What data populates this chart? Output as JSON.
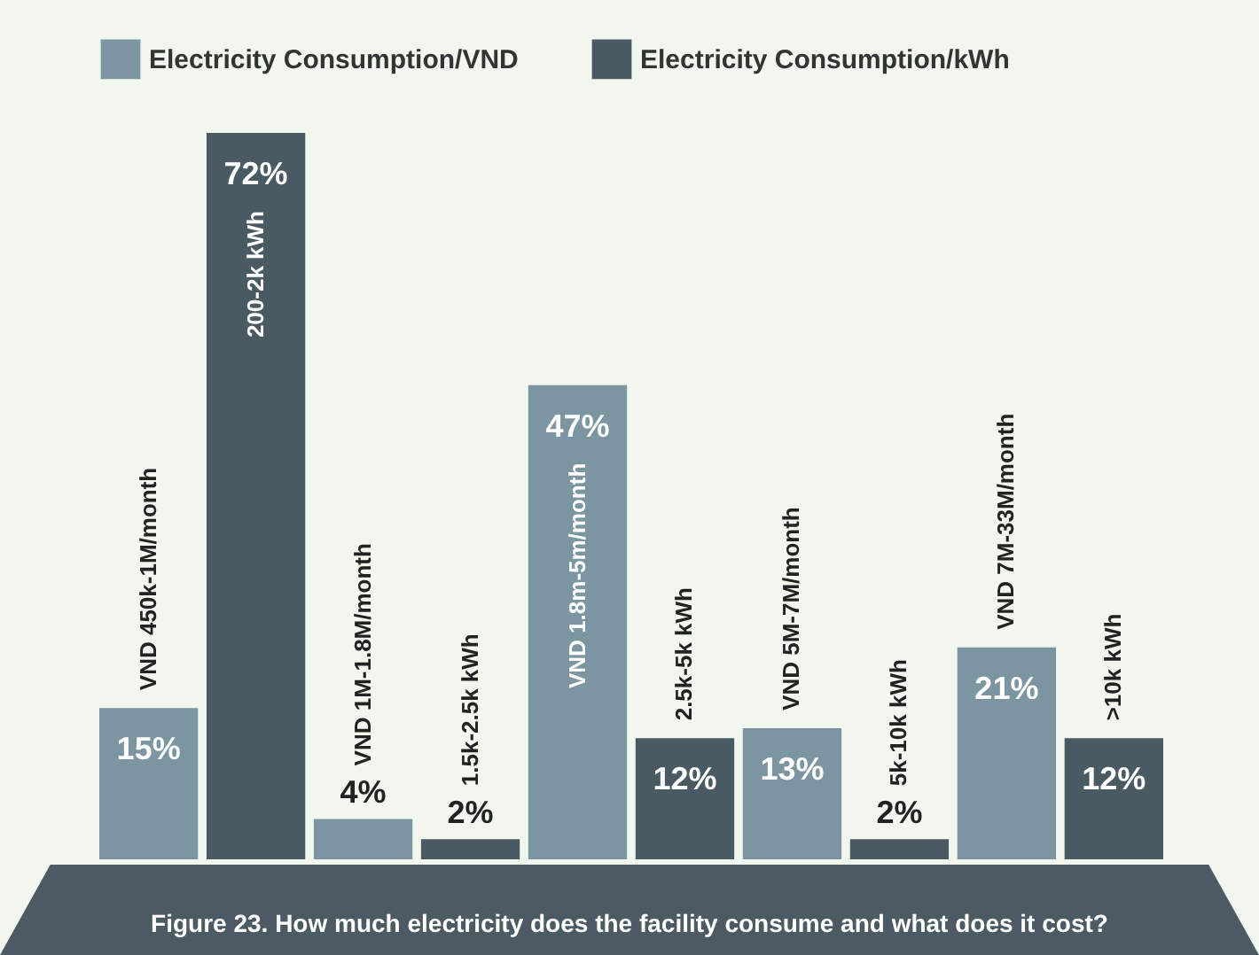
{
  "chart_data": {
    "type": "bar",
    "stacked": true,
    "legend": "top",
    "categories": [
      "VND 450k-1M/month",
      "200-2k kWh",
      "VND 1M-1.8M/month",
      "1.5k-2.5k kWh",
      "VND 1.8m-5m/month",
      "2.5k-5k kWh",
      "VND 5M-7M/month",
      "5k-10k kWh",
      "VND 7M-33M/month",
      ">10k kWh"
    ],
    "series": [
      {
        "name": "Electricity Consumption/VND",
        "color": "#7b96a0",
        "values": [
          15,
          null,
          4,
          null,
          47,
          null,
          13,
          null,
          21,
          null
        ],
        "value_labels": [
          "15%",
          null,
          "4%",
          null,
          "47%",
          null,
          "13%",
          null,
          "21%",
          null
        ]
      },
      {
        "name": "Electricity Consumption/kWh",
        "color": "#4a5a63",
        "values": [
          null,
          72,
          null,
          2,
          null,
          12,
          null,
          2,
          null,
          12
        ],
        "value_labels": [
          null,
          "72%",
          null,
          "2%",
          null,
          "12%",
          null,
          "2%",
          null,
          "12%"
        ]
      }
    ],
    "annotations": [
      "Figure 23. How much electricity does the facility consume and what does it cost?"
    ]
  }
}
